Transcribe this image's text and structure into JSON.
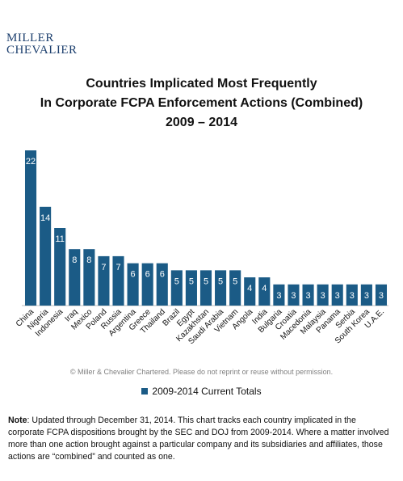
{
  "logo": {
    "line1": "MILLER",
    "line2": "CHEVALIER"
  },
  "title": {
    "line1": "Countries Implicated Most Frequently",
    "line2": "In Corporate FCPA Enforcement Actions (Combined)",
    "line3": "2009 – 2014"
  },
  "copyright": "© Miller & Chevalier Chartered. Please do not reprint or reuse without permission.",
  "legend": {
    "label": "2009-2014 Current Totals",
    "color": "#1b5b86"
  },
  "note": {
    "label": "Note",
    "text": ": Updated through December 31, 2014. This chart tracks each country implicated in the corporate FCPA dispositions  brought  by the SEC and DOJ from 2009-2014.  Where  a matter involved more than one action brought against a particular company and its subsidiaries and affiliates, those actions are “combined” and counted as one."
  },
  "chart_data": {
    "type": "bar",
    "title": "Countries Implicated Most Frequently In Corporate FCPA Enforcement Actions (Combined) 2009 – 2014",
    "categories": [
      "China",
      "Nigeria",
      "Indonesia",
      "Iraq",
      "Mexico",
      "Poland",
      "Russia",
      "Argentina",
      "Greece",
      "Thailand",
      "Brazil",
      "Egypt",
      "Kazakhstan",
      "Saudi Arabia",
      "Vietnam",
      "Angola",
      "India",
      "Bulgaria",
      "Croatia",
      "Macedonia",
      "Malaysia",
      "Panama",
      "Serbia",
      "South Korea",
      "U.A.E."
    ],
    "series": [
      {
        "name": "2009-2014 Current Totals",
        "values": [
          22,
          14,
          11,
          8,
          8,
          7,
          7,
          6,
          6,
          6,
          5,
          5,
          5,
          5,
          5,
          4,
          4,
          3,
          3,
          3,
          3,
          3,
          3,
          3,
          3
        ],
        "color": "#1b5b86"
      }
    ],
    "ylim": [
      0,
      22
    ],
    "data_labels": true,
    "grid": false,
    "legend_position": "bottom"
  }
}
